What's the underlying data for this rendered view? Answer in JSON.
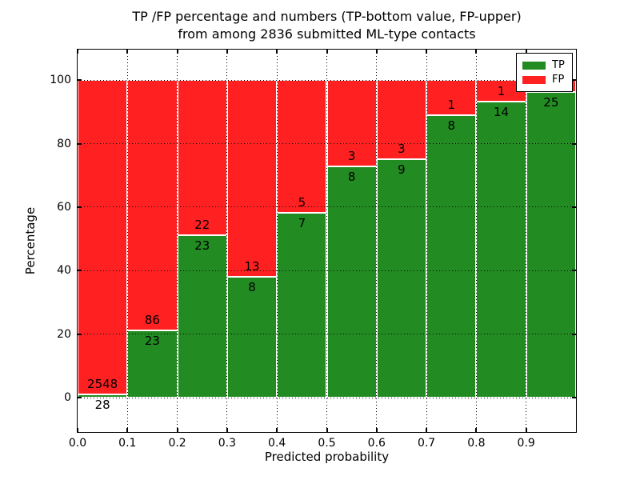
{
  "figure": {
    "title_line1": "TP /FP percentage and numbers (TP-bottom value, FP-upper)",
    "title_line2": "from among 2836 submitted ML-type contacts",
    "xlabel": "Predicted probability",
    "ylabel": "Percentage"
  },
  "axes": {
    "xtick_labels": [
      "0.0",
      "0.1",
      "0.2",
      "0.3",
      "0.4",
      "0.5",
      "0.6",
      "0.7",
      "0.8",
      "0.9"
    ],
    "xtick_values": [
      0.0,
      0.1,
      0.2,
      0.3,
      0.4,
      0.5,
      0.6,
      0.7,
      0.8,
      0.9
    ],
    "ytick_labels": [
      "0",
      "20",
      "40",
      "60",
      "80",
      "100"
    ],
    "ytick_values": [
      0,
      20,
      40,
      60,
      80,
      100
    ],
    "xlim": [
      0.0,
      1.0
    ],
    "ylim": [
      -10.8,
      109.6
    ],
    "grid": "dotted",
    "grid_color": "#000000"
  },
  "legend": {
    "position": "upper right",
    "items": [
      {
        "label": "TP",
        "color": "#228b22"
      },
      {
        "label": "FP",
        "color": "#ff2121"
      }
    ]
  },
  "chart_data": {
    "type": "bar",
    "stacked": true,
    "normalized_to_percent": true,
    "title": "TP /FP percentage and numbers (TP-bottom value, FP-upper) from among 2836 submitted ML-type contacts",
    "xlabel": "Predicted probability",
    "ylabel": "Percentage",
    "bin_width": 0.1,
    "bin_starts": [
      0.0,
      0.1,
      0.2,
      0.3,
      0.4,
      0.5,
      0.6,
      0.7,
      0.8,
      0.9
    ],
    "series": [
      {
        "name": "TP",
        "color": "#228b22",
        "counts": [
          28,
          23,
          23,
          8,
          7,
          8,
          9,
          8,
          14,
          25
        ]
      },
      {
        "name": "FP",
        "color": "#ff2121",
        "counts": [
          2548,
          86,
          22,
          13,
          5,
          3,
          3,
          1,
          1,
          1
        ]
      }
    ],
    "total_contacts": 2836,
    "bar_edge_color": "#ffffff",
    "annotation_scheme": "TP count below boundary, FP count above boundary"
  }
}
